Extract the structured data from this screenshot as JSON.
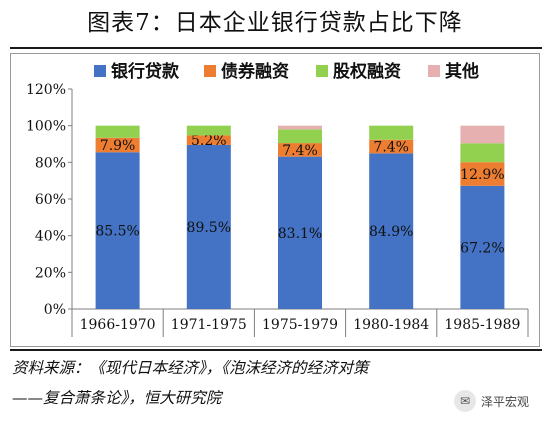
{
  "figure": {
    "title": "图表7：日本企业银行贷款占比下降",
    "source_line1": "资料来源：《现代日本经济》，《泡沫经济的经济对策",
    "source_line2": "——复合萧条论》，恒大研究院",
    "watermark": "泽平宏观",
    "watermark_icon": "wechat-icon"
  },
  "chart_data": {
    "type": "bar",
    "stacked": true,
    "categories": [
      "1966-1970",
      "1971-1975",
      "1975-1979",
      "1980-1984",
      "1985-1989"
    ],
    "series": [
      {
        "name": "银行贷款",
        "color": "#4472C4",
        "values": [
          85.5,
          89.5,
          83.1,
          84.9,
          67.2
        ],
        "labels": [
          "85.5%",
          "89.5%",
          "83.1%",
          "84.9%",
          "67.2%"
        ]
      },
      {
        "name": "债券融资",
        "color": "#ED7D31",
        "values": [
          7.9,
          5.2,
          7.4,
          7.4,
          12.9
        ],
        "labels": [
          "7.9%",
          "5.2%",
          "7.4%",
          "7.4%",
          "12.9%"
        ]
      },
      {
        "name": "股权融资",
        "color": "#92D050",
        "values": [
          6.6,
          5.3,
          7.5,
          7.7,
          10.3
        ],
        "labels": null
      },
      {
        "name": "其他",
        "color": "#E6B0B0",
        "values": [
          0,
          0,
          2.0,
          0,
          9.6
        ],
        "labels": null
      }
    ],
    "ylim": [
      0,
      120
    ],
    "yticks": [
      0,
      20,
      40,
      60,
      80,
      100,
      120
    ],
    "ytick_labels": [
      "0%",
      "20%",
      "40%",
      "60%",
      "80%",
      "100%",
      "120%"
    ],
    "xlabel": "",
    "ylabel": "",
    "legend_position": "top",
    "grid": false
  }
}
